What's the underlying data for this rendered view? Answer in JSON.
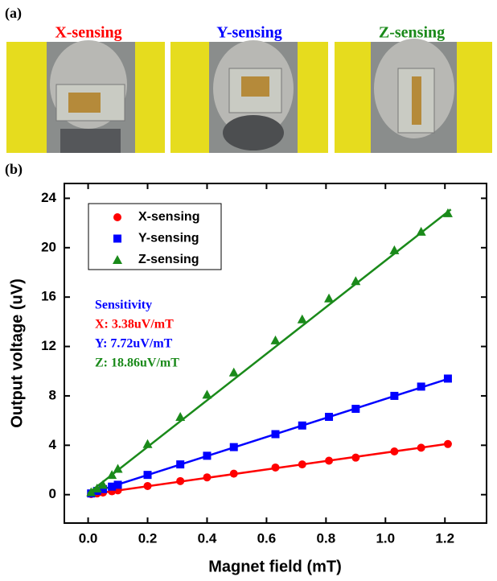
{
  "panel_a": {
    "label": "(a)",
    "photo_titles": [
      {
        "text": "X-sensing",
        "color": "#ff0000"
      },
      {
        "text": "Y-sensing",
        "color": "#0000ff"
      },
      {
        "text": "Z-sensing",
        "color": "#1a8a1a"
      }
    ]
  },
  "panel_b": {
    "label": "(b)"
  },
  "chart_data": {
    "type": "scatter",
    "x_label": "Magnet field (mT)",
    "y_label": "Output voltage (uV)",
    "xlim": [
      -0.08,
      1.34
    ],
    "ylim": [
      -2.3,
      25.2
    ],
    "xticks": [
      {
        "value": 0,
        "label": "0.0"
      },
      0.2,
      0.4,
      0.6,
      0.8,
      {
        "value": 1,
        "label": "1.0"
      },
      1.2
    ],
    "yticks": [
      0,
      4,
      8,
      12,
      16,
      20,
      24
    ],
    "legend": "upper left",
    "x": [
      0.01,
      0.03,
      0.05,
      0.08,
      0.1,
      0.2,
      0.31,
      0.4,
      0.49,
      0.63,
      0.72,
      0.81,
      0.9,
      1.03,
      1.12,
      1.21
    ],
    "series": [
      {
        "name": "X-sensing",
        "color": "#ff0000",
        "marker": "circle",
        "values": [
          0.05,
          0.1,
          0.17,
          0.27,
          0.35,
          0.7,
          1.1,
          1.4,
          1.7,
          2.2,
          2.45,
          2.75,
          3.0,
          3.5,
          3.8,
          4.1
        ],
        "fit": {
          "x": [
            0,
            1.22
          ],
          "values": [
            0.0,
            4.15
          ]
        }
      },
      {
        "name": "Y-sensing",
        "color": "#0000ff",
        "marker": "square",
        "values": [
          0.1,
          0.3,
          0.45,
          0.65,
          0.8,
          1.6,
          2.45,
          3.15,
          3.85,
          4.9,
          5.6,
          6.3,
          6.95,
          8.0,
          8.75,
          9.4
        ],
        "fit": {
          "x": [
            0,
            1.22
          ],
          "values": [
            0.05,
            9.45
          ]
        }
      },
      {
        "name": "Z-sensing",
        "color": "#1a8a1a",
        "marker": "triangle",
        "values": [
          0.2,
          0.5,
          0.8,
          1.6,
          2.1,
          4.1,
          6.3,
          8.1,
          9.9,
          12.5,
          14.2,
          15.9,
          17.3,
          19.8,
          21.3,
          22.8
        ],
        "fit": {
          "x": [
            0,
            1.22
          ],
          "values": [
            0.1,
            23.1
          ]
        }
      }
    ],
    "annotations": [
      {
        "text": "Sensitivity",
        "color": "#0000ff"
      },
      {
        "text": "X: 3.38uV/mT",
        "color": "#ff0000"
      },
      {
        "text": "Y: 7.72uV/mT",
        "color": "#0000ff"
      },
      {
        "text": "Z: 18.86uV/mT",
        "color": "#1a8a1a"
      }
    ]
  }
}
